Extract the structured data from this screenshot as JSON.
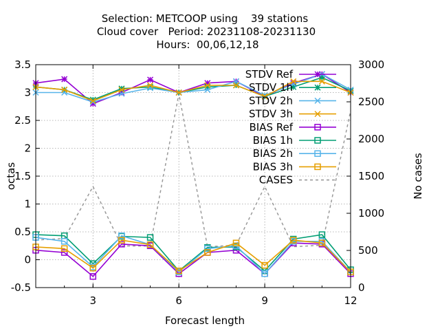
{
  "chart_data": {
    "type": "line",
    "title_lines": [
      "Selection: METCOOP using    39 stations",
      "Cloud cover   Period: 20231108-20231130",
      "Hours:  00,06,12,18"
    ],
    "xlabel": "Forecast length",
    "ylabel": "octas",
    "y2label": "No cases",
    "xlim": [
      1,
      12
    ],
    "ylim": [
      -0.5,
      3.5
    ],
    "y2lim": [
      0,
      3000
    ],
    "xticks": [
      3,
      6,
      9,
      12
    ],
    "yticks": [
      -0.5,
      0,
      0.5,
      1,
      1.5,
      2,
      2.5,
      3,
      3.5
    ],
    "y2ticks": [
      0,
      500,
      1000,
      1500,
      2000,
      2500,
      3000
    ],
    "grid": true,
    "legend_position": "top-right",
    "x": [
      1,
      2,
      3,
      4,
      5,
      6,
      7,
      8,
      9,
      10,
      11,
      12
    ],
    "series": [
      {
        "name": "STDV Ref",
        "color": "#9400d3",
        "marker": "star",
        "dash": "solid",
        "axis": "y1",
        "values": [
          3.17,
          3.24,
          2.8,
          3.0,
          3.23,
          3.0,
          3.17,
          3.2,
          2.93,
          3.17,
          3.33,
          3.0
        ]
      },
      {
        "name": "STDV 1h",
        "color": "#009e73",
        "marker": "star",
        "dash": "solid",
        "axis": "y1",
        "values": [
          3.1,
          3.05,
          2.87,
          3.07,
          3.1,
          3.0,
          3.1,
          3.13,
          2.93,
          3.1,
          3.27,
          3.03
        ]
      },
      {
        "name": "STDV 2h",
        "color": "#56b4e9",
        "marker": "x",
        "dash": "solid",
        "axis": "y1",
        "values": [
          3.0,
          3.0,
          2.83,
          2.98,
          3.08,
          3.0,
          3.05,
          3.2,
          2.95,
          3.15,
          3.33,
          3.05
        ]
      },
      {
        "name": "STDV 3h",
        "color": "#e69f00",
        "marker": "x",
        "dash": "solid",
        "axis": "y1",
        "values": [
          3.1,
          3.05,
          2.85,
          3.05,
          3.13,
          3.0,
          3.13,
          3.13,
          2.93,
          3.2,
          3.2,
          3.0
        ]
      },
      {
        "name": "BIAS Ref",
        "color": "#9400d3",
        "marker": "square",
        "dash": "solid",
        "axis": "y1",
        "values": [
          0.17,
          0.13,
          -0.3,
          0.28,
          0.25,
          -0.25,
          0.13,
          0.17,
          -0.25,
          0.3,
          0.28,
          -0.25
        ]
      },
      {
        "name": "BIAS 1h",
        "color": "#009e73",
        "marker": "square",
        "dash": "solid",
        "axis": "y1",
        "values": [
          0.45,
          0.43,
          -0.07,
          0.42,
          0.4,
          -0.2,
          0.22,
          0.23,
          -0.2,
          0.37,
          0.45,
          -0.18
        ]
      },
      {
        "name": "BIAS 2h",
        "color": "#56b4e9",
        "marker": "square",
        "dash": "solid",
        "axis": "y1",
        "values": [
          0.4,
          0.33,
          -0.13,
          0.43,
          0.27,
          -0.22,
          0.2,
          0.25,
          -0.25,
          0.33,
          0.33,
          -0.22
        ]
      },
      {
        "name": "BIAS 3h",
        "color": "#e69f00",
        "marker": "square",
        "dash": "solid",
        "axis": "y1",
        "values": [
          0.23,
          0.2,
          -0.15,
          0.35,
          0.27,
          -0.2,
          0.13,
          0.3,
          -0.1,
          0.35,
          0.3,
          -0.22
        ]
      },
      {
        "name": "CASES",
        "color": "#999999",
        "marker": "none",
        "dash": "dashed",
        "axis": "y2",
        "values": [
          640,
          660,
          1360,
          560,
          560,
          2610,
          550,
          570,
          1360,
          550,
          570,
          2380
        ]
      }
    ]
  }
}
